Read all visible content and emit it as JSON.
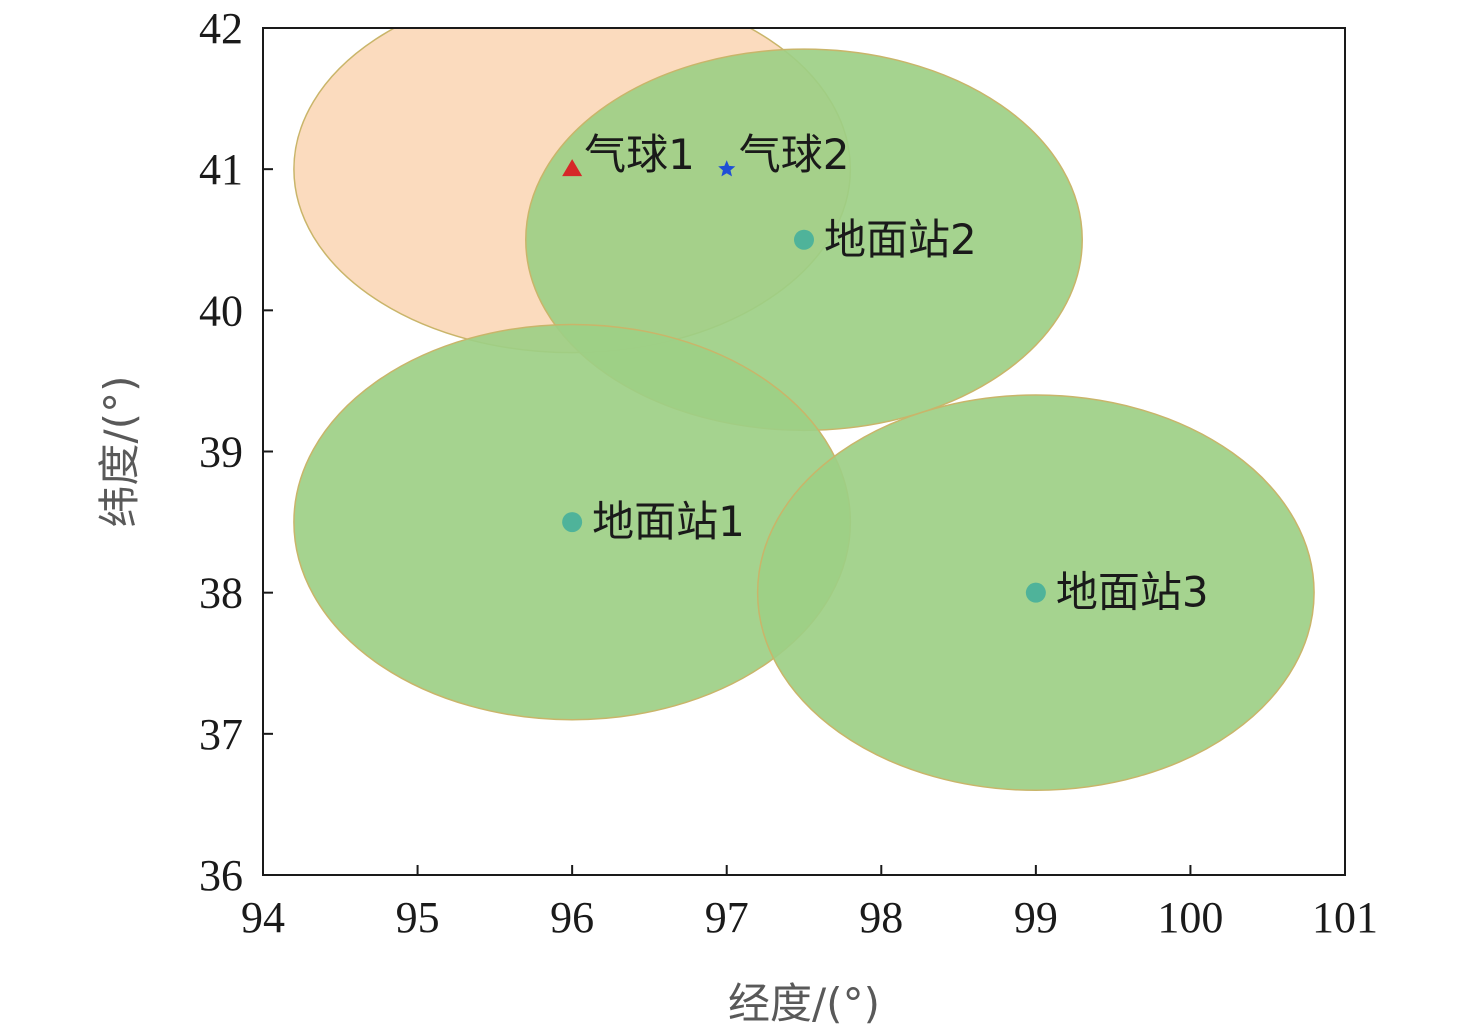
{
  "chart_data": {
    "type": "scatter",
    "xlabel": "经度/(°)",
    "ylabel": "纬度/(°)",
    "xlim": [
      94,
      101
    ],
    "ylim": [
      36,
      42
    ],
    "xticks": [
      "94",
      "95",
      "96",
      "97",
      "98",
      "99",
      "100",
      "101"
    ],
    "yticks": [
      "36",
      "37",
      "38",
      "39",
      "40",
      "41",
      "42"
    ],
    "grid": false,
    "coverage_areas": [
      {
        "center_x": 96.0,
        "center_y": 41.0,
        "radius_x": 1.8,
        "radius_y": 1.3,
        "color": "#fbd8b8"
      },
      {
        "center_x": 97.5,
        "center_y": 40.5,
        "radius_x": 1.8,
        "radius_y": 1.35,
        "color": "#9dcf85"
      },
      {
        "center_x": 96.0,
        "center_y": 38.5,
        "radius_x": 1.8,
        "radius_y": 1.4,
        "color": "#9dcf85"
      },
      {
        "center_x": 99.0,
        "center_y": 38.0,
        "radius_x": 1.8,
        "radius_y": 1.4,
        "color": "#9dcf85"
      }
    ],
    "points": [
      {
        "label": "气球1",
        "x": 96,
        "y": 41,
        "marker": "triangle",
        "color": "#d62728"
      },
      {
        "label": "气球2",
        "x": 97,
        "y": 41,
        "marker": "star",
        "color": "#1f4fd6"
      },
      {
        "label": "地面站2",
        "x": 97.5,
        "y": 40.5,
        "marker": "circle",
        "color": "#4fb39a"
      },
      {
        "label": "地面站1",
        "x": 96,
        "y": 38.5,
        "marker": "circle",
        "color": "#4fb39a"
      },
      {
        "label": "地面站3",
        "x": 99,
        "y": 38,
        "marker": "circle",
        "color": "#4fb39a"
      }
    ]
  }
}
